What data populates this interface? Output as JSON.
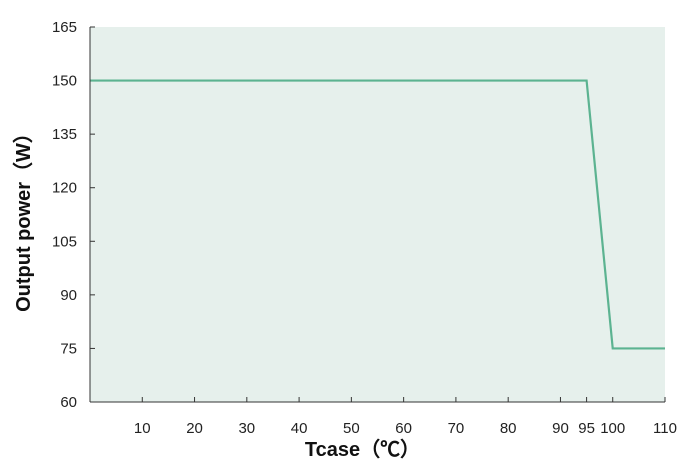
{
  "chart_data": {
    "type": "line",
    "title": "",
    "xlabel": "Tcase（℃）",
    "ylabel": "Output power（W）",
    "xlim": [
      0,
      110
    ],
    "ylim": [
      60,
      165
    ],
    "x_ticks": [
      10,
      20,
      30,
      40,
      50,
      60,
      70,
      80,
      90,
      95,
      100,
      110
    ],
    "y_ticks": [
      60,
      75,
      90,
      105,
      120,
      135,
      150,
      165
    ],
    "grid": false,
    "colors": {
      "plot_background": "#e6f0ec",
      "line": "#5cb391",
      "axis": "#333333"
    },
    "series": [
      {
        "x": [
          0,
          95,
          100,
          110
        ],
        "y": [
          150,
          150,
          75,
          75
        ]
      }
    ]
  }
}
